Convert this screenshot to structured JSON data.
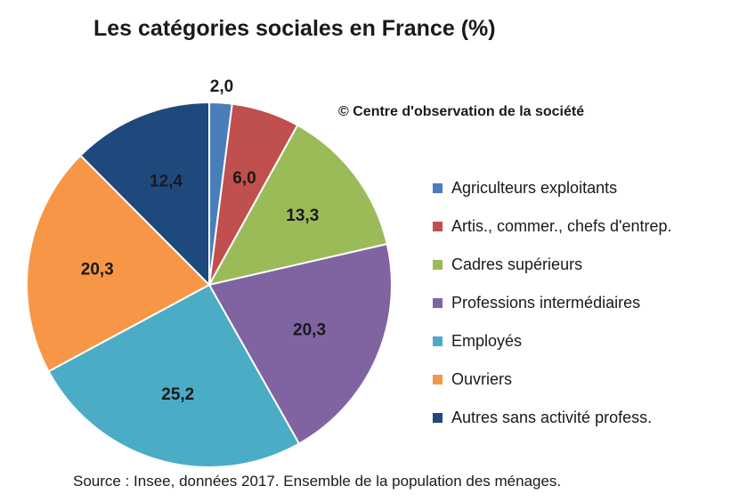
{
  "header": {
    "title": "Les catégories sociales en France (%)",
    "copyright": "© Centre d'observation de la société"
  },
  "footer": {
    "source": "Source : Insee, données 2017.  Ensemble de la population des ménages."
  },
  "chart_data": {
    "type": "pie",
    "title": "Les catégories sociales en France (%)",
    "categories": [
      "Agriculteurs exploitants",
      "Artis., commer., chefs d'entrep.",
      "Cadres supérieurs",
      "Professions intermédiaires",
      "Employés",
      "Ouvriers",
      "Autres sans activité profess."
    ],
    "values": [
      2.0,
      6.0,
      13.3,
      20.3,
      25.2,
      20.3,
      12.4
    ],
    "value_labels": [
      "2,0",
      "6,0",
      "13,3",
      "20,3",
      "25,2",
      "20,3",
      "12,4"
    ],
    "colors": [
      "#4a7ebb",
      "#c0504d",
      "#9bbb59",
      "#8064a2",
      "#4bacc6",
      "#f79646",
      "#1f497d"
    ],
    "start_angle_deg": 0,
    "direction": "clockwise",
    "legend_position": "right"
  }
}
